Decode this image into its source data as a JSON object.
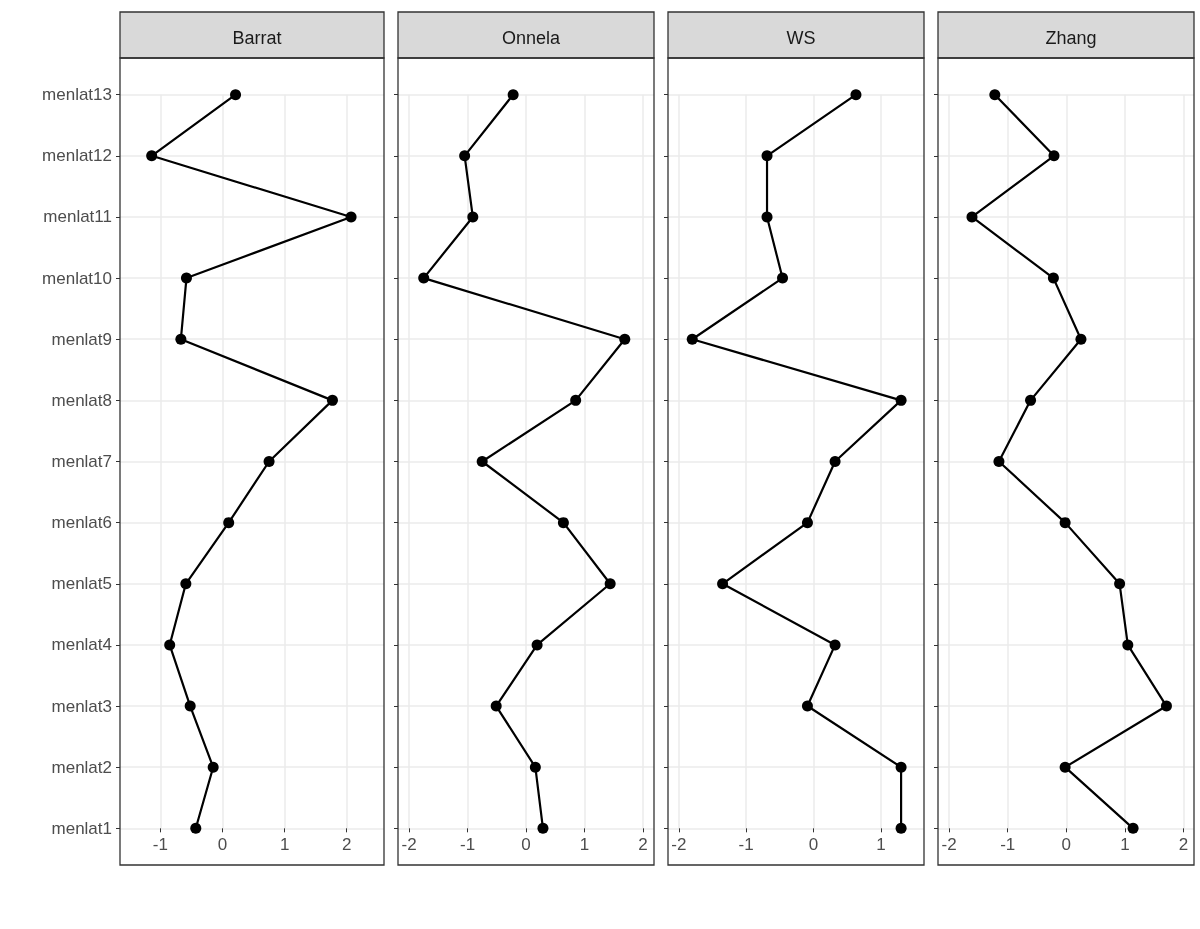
{
  "chart_data": [
    {
      "type": "line",
      "title": "Barrat",
      "categories": [
        "menlat13",
        "menlat12",
        "menlat11",
        "menlat10",
        "menlat9",
        "menlat8",
        "menlat7",
        "menlat6",
        "menlat5",
        "menlat4",
        "menlat3",
        "menlat2",
        "menlat1"
      ],
      "orientation": "horizontal",
      "series": [
        {
          "color": "#000000",
          "values": [
            0.21,
            -1.14,
            2.07,
            -0.58,
            -0.67,
            1.77,
            0.75,
            0.1,
            -0.59,
            -0.85,
            -0.52,
            -0.15,
            -0.43
          ]
        }
      ],
      "xlim": [
        -1.65,
        2.6
      ],
      "xticks": [
        -1,
        0,
        1,
        2
      ],
      "grid": true,
      "marker": "circle",
      "line_style": "solid"
    },
    {
      "type": "line",
      "title": "Onnela",
      "categories": [
        null,
        null,
        null,
        null,
        null,
        null,
        null,
        null,
        null,
        null,
        null,
        null,
        null
      ],
      "orientation": "horizontal",
      "series": [
        {
          "color": "#000000",
          "values": [
            -0.22,
            -1.05,
            -0.91,
            -1.75,
            1.69,
            0.85,
            -0.75,
            0.64,
            1.44,
            0.19,
            -0.51,
            0.16,
            0.29
          ]
        }
      ],
      "xlim": [
        -2.19,
        2.19
      ],
      "xticks": [
        -2,
        -1,
        0,
        1,
        2
      ],
      "grid": true,
      "marker": "circle",
      "line_style": "solid",
      "tick_labels": "x"
    },
    {
      "type": "line",
      "title": "WS",
      "categories": [
        null,
        null,
        null,
        null,
        null,
        null,
        null,
        null,
        null,
        null,
        null,
        null,
        null
      ],
      "orientation": "horizontal",
      "series": [
        {
          "color": "#000000",
          "values": [
            0.63,
            -0.69,
            -0.69,
            -0.46,
            -1.8,
            1.3,
            0.32,
            -0.09,
            -1.35,
            0.32,
            -0.09,
            1.3,
            1.3
          ]
        }
      ],
      "xlim": [
        -2.16,
        1.64
      ],
      "xticks": [
        -2,
        -1,
        0,
        1
      ],
      "grid": true,
      "marker": "circle",
      "line_style": "solid",
      "tick_labels": "x"
    },
    {
      "type": "line",
      "title": "Zhang",
      "categories": [
        null,
        null,
        null,
        null,
        null,
        null,
        null,
        null,
        null,
        null,
        null,
        null,
        null
      ],
      "orientation": "horizontal",
      "series": [
        {
          "color": "#000000",
          "values": [
            -1.22,
            -0.21,
            -1.61,
            -0.22,
            0.25,
            -0.61,
            -1.15,
            -0.02,
            0.91,
            1.05,
            1.71,
            -0.02,
            1.14
          ]
        }
      ],
      "xlim": [
        -2.19,
        2.18
      ],
      "xticks": [
        -2,
        -1,
        0,
        1,
        2
      ],
      "grid": true,
      "marker": "circle",
      "line_style": "solid",
      "tick_labels": "x"
    }
  ]
}
